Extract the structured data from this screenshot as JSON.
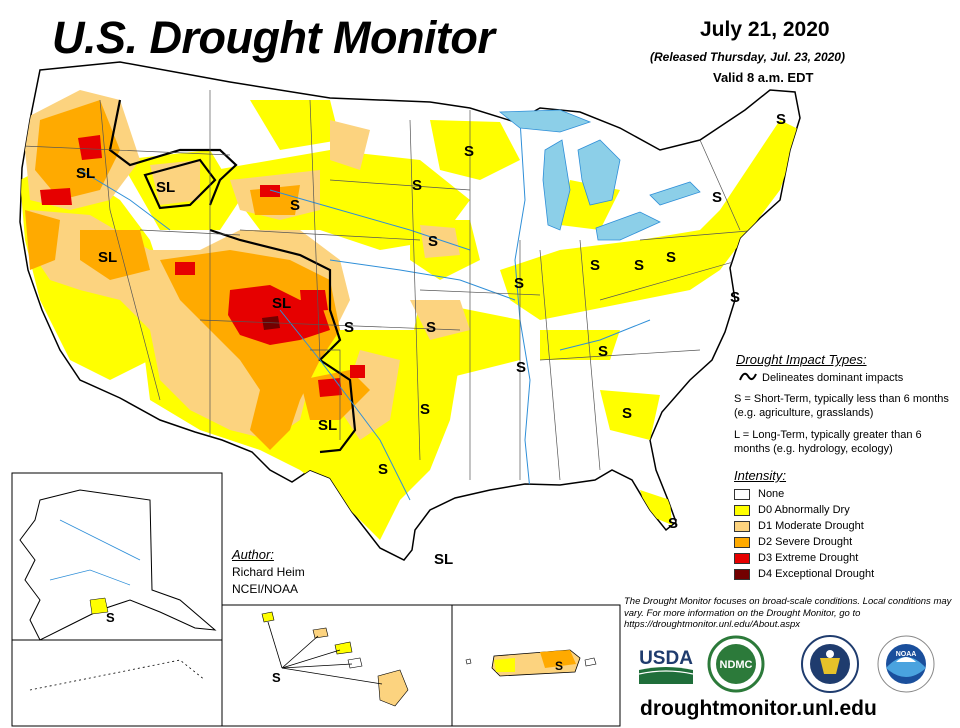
{
  "header": {
    "title": "U.S. Drought Monitor",
    "date": "July 21, 2020",
    "released": "(Released Thursday, Jul. 23, 2020)",
    "valid": "Valid 8 a.m. EDT"
  },
  "impact_types": {
    "title": "Drought Impact Types:",
    "delineates": "Delineates dominant impacts",
    "short_term": "S = Short-Term, typically less than 6 months (e.g. agriculture, grasslands)",
    "long_term": "L = Long-Term, typically greater than 6 months (e.g. hydrology, ecology)"
  },
  "intensity": {
    "title": "Intensity:",
    "levels": [
      {
        "label": "None",
        "color": "#ffffff"
      },
      {
        "label": "D0 Abnormally Dry",
        "color": "#ffff00"
      },
      {
        "label": "D1 Moderate Drought",
        "color": "#fcd37f"
      },
      {
        "label": "D2 Severe Drought",
        "color": "#ffaa00"
      },
      {
        "label": "D3 Extreme Drought",
        "color": "#e60000"
      },
      {
        "label": "D4 Exceptional Drought",
        "color": "#730000"
      }
    ]
  },
  "map_labels": {
    "sl": "SL",
    "s": "S"
  },
  "author": {
    "title": "Author:",
    "name": "Richard Heim",
    "org": "NCEI/NOAA"
  },
  "disclaimer": "The Drought Monitor focuses on broad-scale conditions. Local conditions may vary. For more information on the Drought Monitor, go to https://droughtmonitor.unl.edu/About.aspx",
  "logos": {
    "usda": "USDA",
    "ndmc": "NDMC",
    "noaa": "NOAA"
  },
  "website": "droughtmonitor.unl.edu",
  "colors": {
    "water": "#8ccfe8",
    "river": "#2f8fd8",
    "border": "#000000",
    "state_line": "#555555"
  }
}
